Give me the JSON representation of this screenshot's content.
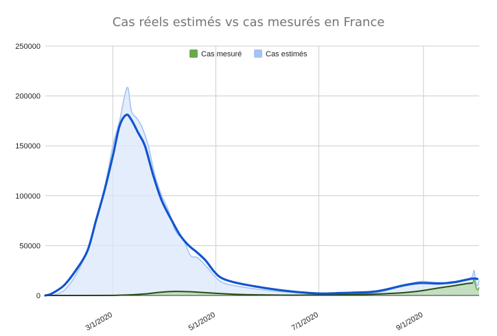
{
  "chart_data": {
    "type": "area",
    "title": "Cas réels estimés vs cas mesurés en France",
    "xlabel": "",
    "ylabel": "",
    "x_range": [
      "2020-01-21",
      "2020-10-04"
    ],
    "ylim": [
      0,
      250000
    ],
    "y_ticks": [
      0,
      50000,
      100000,
      150000,
      200000,
      250000
    ],
    "y_tick_labels": [
      "0",
      "50000",
      "100000",
      "150000",
      "200000",
      "250000"
    ],
    "x_ticks": [
      "2020-03-01",
      "2020-05-01",
      "2020-07-01",
      "2020-09-01"
    ],
    "x_tick_labels": [
      "3/1/2020",
      "5/1/2020",
      "7/1/2020",
      "9/1/2020"
    ],
    "grid": true,
    "legend_position": "top",
    "series": [
      {
        "name": "Cas mesuré",
        "color": "#6aa84f",
        "fill": "#b6d7a8",
        "trend_color": "#274e13",
        "points": [
          [
            "2020-01-21",
            0
          ],
          [
            "2020-02-15",
            0
          ],
          [
            "2020-03-01",
            100
          ],
          [
            "2020-03-10",
            500
          ],
          [
            "2020-03-20",
            1500
          ],
          [
            "2020-03-28",
            3000
          ],
          [
            "2020-04-05",
            4000
          ],
          [
            "2020-04-15",
            3800
          ],
          [
            "2020-04-25",
            2800
          ],
          [
            "2020-05-05",
            1800
          ],
          [
            "2020-05-15",
            1000
          ],
          [
            "2020-06-01",
            500
          ],
          [
            "2020-06-15",
            300
          ],
          [
            "2020-07-01",
            400
          ],
          [
            "2020-07-15",
            700
          ],
          [
            "2020-08-01",
            1200
          ],
          [
            "2020-08-15",
            2200
          ],
          [
            "2020-08-25",
            3500
          ],
          [
            "2020-09-01",
            5000
          ],
          [
            "2020-09-10",
            7500
          ],
          [
            "2020-09-20",
            10000
          ],
          [
            "2020-09-27",
            12000
          ],
          [
            "2020-09-30",
            12500
          ],
          [
            "2020-10-01",
            16000
          ],
          [
            "2020-10-02",
            9000
          ],
          [
            "2020-10-03",
            5500
          ],
          [
            "2020-10-04",
            8000
          ]
        ]
      },
      {
        "name": "Cas estimés",
        "color": "#a4c2f4",
        "fill": "#dbe7fa",
        "trend_color": "#1155cc",
        "points": [
          [
            "2020-01-21",
            0
          ],
          [
            "2020-01-26",
            500
          ],
          [
            "2020-02-01",
            5000
          ],
          [
            "2020-02-06",
            15000
          ],
          [
            "2020-02-11",
            30000
          ],
          [
            "2020-02-16",
            50000
          ],
          [
            "2020-02-21",
            80000
          ],
          [
            "2020-02-26",
            115000
          ],
          [
            "2020-03-01",
            150000
          ],
          [
            "2020-03-05",
            175000
          ],
          [
            "2020-03-08",
            200000
          ],
          [
            "2020-03-10",
            208000
          ],
          [
            "2020-03-12",
            185000
          ],
          [
            "2020-03-15",
            178000
          ],
          [
            "2020-03-18",
            170000
          ],
          [
            "2020-03-22",
            150000
          ],
          [
            "2020-03-26",
            120000
          ],
          [
            "2020-03-30",
            100000
          ],
          [
            "2020-04-03",
            85000
          ],
          [
            "2020-04-07",
            65000
          ],
          [
            "2020-04-12",
            55000
          ],
          [
            "2020-04-16",
            40000
          ],
          [
            "2020-04-20",
            38000
          ],
          [
            "2020-04-25",
            30000
          ],
          [
            "2020-04-30",
            20000
          ],
          [
            "2020-05-05",
            13000
          ],
          [
            "2020-05-15",
            9000
          ],
          [
            "2020-06-01",
            5000
          ],
          [
            "2020-06-15",
            3000
          ],
          [
            "2020-07-01",
            1000
          ],
          [
            "2020-07-15",
            1500
          ],
          [
            "2020-08-01",
            2500
          ],
          [
            "2020-08-10",
            5000
          ],
          [
            "2020-08-20",
            10000
          ],
          [
            "2020-08-30",
            14000
          ],
          [
            "2020-09-05",
            13500
          ],
          [
            "2020-09-10",
            13000
          ],
          [
            "2020-09-15",
            12000
          ],
          [
            "2020-09-20",
            13000
          ],
          [
            "2020-09-25",
            15000
          ],
          [
            "2020-09-28",
            17000
          ],
          [
            "2020-09-30",
            19000
          ],
          [
            "2020-10-01",
            25000
          ],
          [
            "2020-10-02",
            14000
          ],
          [
            "2020-10-03",
            10000
          ],
          [
            "2020-10-04",
            15000
          ]
        ],
        "trend": [
          [
            "2020-01-21",
            0
          ],
          [
            "2020-01-25",
            2000
          ],
          [
            "2020-02-01",
            10000
          ],
          [
            "2020-02-08",
            25000
          ],
          [
            "2020-02-15",
            45000
          ],
          [
            "2020-02-20",
            75000
          ],
          [
            "2020-02-25",
            105000
          ],
          [
            "2020-03-01",
            140000
          ],
          [
            "2020-03-05",
            170000
          ],
          [
            "2020-03-09",
            181000
          ],
          [
            "2020-03-12",
            176000
          ],
          [
            "2020-03-16",
            163000
          ],
          [
            "2020-03-20",
            150000
          ],
          [
            "2020-03-25",
            120000
          ],
          [
            "2020-03-30",
            95000
          ],
          [
            "2020-04-05",
            75000
          ],
          [
            "2020-04-10",
            60000
          ],
          [
            "2020-04-15",
            50000
          ],
          [
            "2020-04-20",
            43000
          ],
          [
            "2020-04-25",
            35000
          ],
          [
            "2020-04-30",
            24000
          ],
          [
            "2020-05-05",
            17000
          ],
          [
            "2020-05-15",
            12000
          ],
          [
            "2020-06-01",
            7000
          ],
          [
            "2020-06-15",
            4000
          ],
          [
            "2020-07-01",
            2000
          ],
          [
            "2020-07-15",
            2500
          ],
          [
            "2020-08-01",
            3500
          ],
          [
            "2020-08-10",
            6000
          ],
          [
            "2020-08-20",
            10000
          ],
          [
            "2020-08-30",
            12500
          ],
          [
            "2020-09-10",
            12000
          ],
          [
            "2020-09-20",
            13500
          ],
          [
            "2020-09-27",
            16000
          ],
          [
            "2020-10-01",
            17000
          ],
          [
            "2020-10-03",
            16500
          ]
        ]
      }
    ]
  }
}
